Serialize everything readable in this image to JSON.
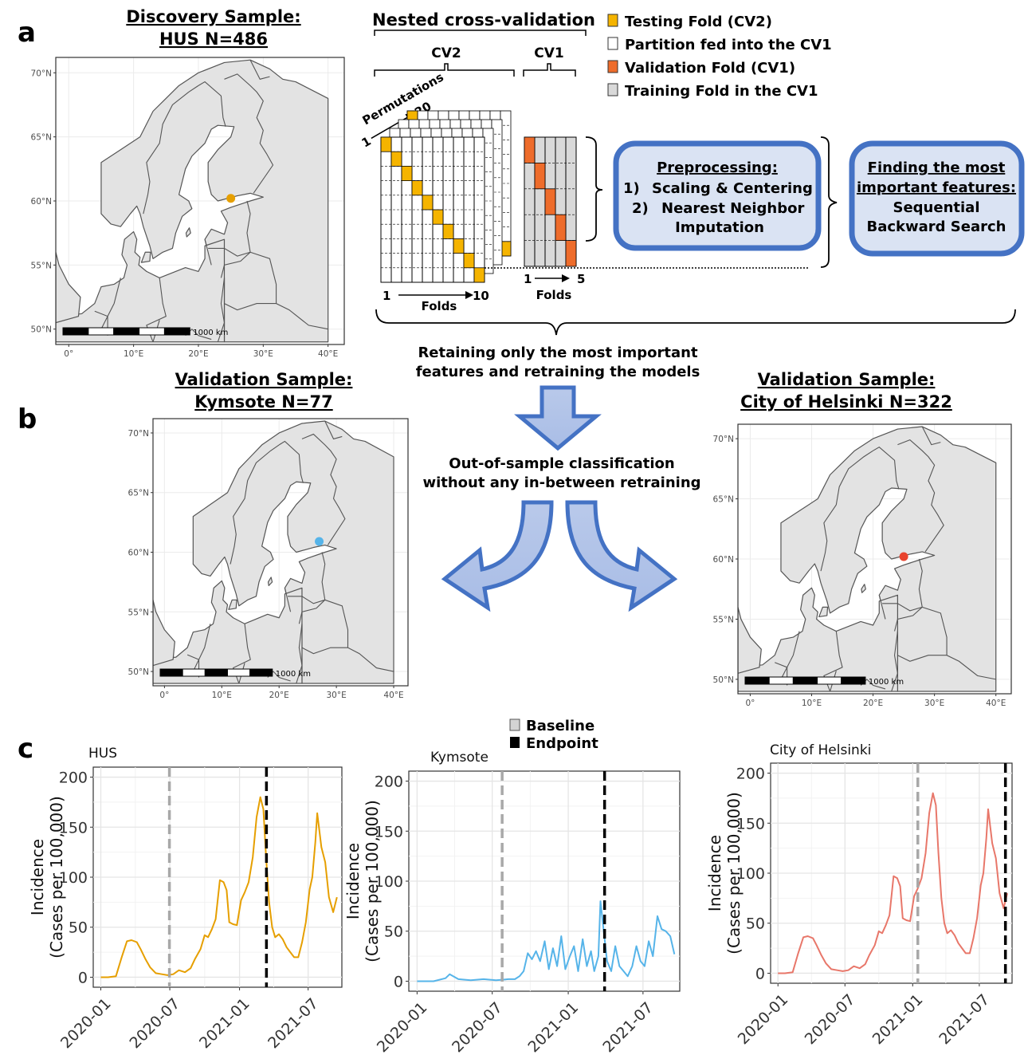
{
  "panel_a_label": "a",
  "panel_b_label": "b",
  "panel_c_label": "c",
  "maps": {
    "discovery": {
      "title1": "Discovery Sample:",
      "title2": "HUS N=486",
      "dot_color": "#E69F00"
    },
    "kymsote": {
      "title1": "Validation Sample:",
      "title2": "Kymsote N=77",
      "dot_color": "#56B4E9"
    },
    "helsinki": {
      "title1": "Validation Sample:",
      "title2": "City of Helsinki N=322",
      "dot_color": "#E8432D"
    },
    "lat_ticks": [
      "70°N",
      "65°N",
      "60°N",
      "55°N",
      "50°N"
    ],
    "lon_ticks": [
      "0°",
      "10°E",
      "20°E",
      "30°E",
      "40°E"
    ],
    "scale_label": "1000 km"
  },
  "ncv": {
    "title": "Nested cross-validation",
    "cv2": "CV2",
    "cv1": "CV1",
    "permutations": "Permutations",
    "perm_start": "1",
    "perm_end": "20",
    "folds": "Folds",
    "folds_start": "1",
    "folds_end": "10",
    "cv1_start": "1",
    "cv1_end": "5",
    "colors": {
      "testing": "#F5B400",
      "validation": "#EE6C2B",
      "training": "#D9D9D9"
    }
  },
  "legend": [
    {
      "label": "Testing Fold (CV2)",
      "color": "#F5B400"
    },
    {
      "label": "Partition fed into the CV1",
      "color": "#FFFFFF"
    },
    {
      "label": "Validation Fold (CV1)",
      "color": "#EE6C2B"
    },
    {
      "label": "Training Fold in the CV1",
      "color": "#D9D9D9"
    }
  ],
  "preprocessing": {
    "title": "Preprocessing:",
    "item1_num": "1)",
    "item1": "Scaling & Centering",
    "item2_num": "2)",
    "item2": "Nearest Neighbor",
    "item2b": "Imputation"
  },
  "features": {
    "title1": "Finding the most",
    "title2": "important features:",
    "line1": "Sequential",
    "line2": "Backward Search"
  },
  "retain": {
    "line1": "Retaining only the most important",
    "line2": "features  and retraining the models"
  },
  "oos": {
    "line1": "Out-of-sample classification",
    "line2": "without any in-between retraining"
  },
  "chart_legend": {
    "baseline": "Baseline",
    "endpoint": "Endpoint",
    "baseline_color": "#D3D3D3",
    "endpoint_color": "#000000"
  },
  "chart_data": [
    {
      "type": "line",
      "title": "HUS",
      "ylabel": "Incidence (Cases per 100,000)",
      "ylabel1": "Incidence",
      "ylabel2": "(Cases per 100,000)",
      "color": "#E69F00",
      "ylim": [
        0,
        200
      ],
      "yticks": [
        0,
        50,
        100,
        150,
        200
      ],
      "xticks": [
        "2020-01",
        "2020-07",
        "2021-01",
        "2021-07"
      ],
      "baseline": "2020-06-30",
      "endpoint": "2021-03-13",
      "x": [
        "2020-01-01",
        "2020-01-20",
        "2020-02-10",
        "2020-02-25",
        "2020-03-10",
        "2020-03-22",
        "2020-04-05",
        "2020-04-15",
        "2020-04-28",
        "2020-05-10",
        "2020-05-25",
        "2020-06-10",
        "2020-06-25",
        "2020-07-10",
        "2020-07-25",
        "2020-08-10",
        "2020-08-25",
        "2020-09-05",
        "2020-09-20",
        "2020-10-01",
        "2020-10-10",
        "2020-10-20",
        "2020-10-30",
        "2020-11-10",
        "2020-11-20",
        "2020-11-28",
        "2020-12-05",
        "2020-12-15",
        "2020-12-25",
        "2021-01-05",
        "2021-01-15",
        "2021-01-25",
        "2021-02-05",
        "2021-02-15",
        "2021-02-25",
        "2021-03-05",
        "2021-03-12",
        "2021-03-20",
        "2021-03-28",
        "2021-04-05",
        "2021-04-15",
        "2021-04-25",
        "2021-05-05",
        "2021-05-15",
        "2021-05-25",
        "2021-06-05",
        "2021-06-15",
        "2021-06-25",
        "2021-07-05",
        "2021-07-12",
        "2021-07-20",
        "2021-07-25",
        "2021-08-05",
        "2021-08-15",
        "2021-08-25",
        "2021-09-05",
        "2021-09-15"
      ],
      "y": [
        0,
        0,
        1,
        20,
        36,
        37,
        35,
        28,
        18,
        10,
        4,
        3,
        2,
        3,
        7,
        5,
        9,
        18,
        28,
        42,
        40,
        48,
        58,
        97,
        95,
        87,
        55,
        53,
        52,
        77,
        85,
        95,
        120,
        160,
        180,
        168,
        120,
        75,
        50,
        40,
        43,
        38,
        30,
        25,
        20,
        20,
        35,
        55,
        88,
        100,
        135,
        164,
        130,
        115,
        80,
        65,
        80
      ]
    },
    {
      "type": "line",
      "title": "Kymsote",
      "ylabel": "Incidence (Cases per 100,000)",
      "ylabel1": "Incidence",
      "ylabel2": "(Cases per 100,000)",
      "color": "#56B4E9",
      "ylim": [
        0,
        200
      ],
      "yticks": [
        0,
        50,
        100,
        150,
        200
      ],
      "xticks": [
        "2020-01",
        "2020-07",
        "2021-01",
        "2021-07"
      ],
      "baseline": "2020-07-25",
      "endpoint": "2021-03-30",
      "x": [
        "2020-01-01",
        "2020-02-10",
        "2020-03-10",
        "2020-03-20",
        "2020-04-10",
        "2020-05-10",
        "2020-06-10",
        "2020-07-10",
        "2020-08-10",
        "2020-08-25",
        "2020-09-05",
        "2020-09-15",
        "2020-09-25",
        "2020-10-05",
        "2020-10-15",
        "2020-10-25",
        "2020-11-05",
        "2020-11-15",
        "2020-11-25",
        "2020-12-05",
        "2020-12-15",
        "2020-12-25",
        "2021-01-05",
        "2021-01-15",
        "2021-01-25",
        "2021-02-05",
        "2021-02-15",
        "2021-02-25",
        "2021-03-05",
        "2021-03-15",
        "2021-03-20",
        "2021-03-28",
        "2021-04-05",
        "2021-04-15",
        "2021-04-25",
        "2021-05-05",
        "2021-05-15",
        "2021-05-25",
        "2021-06-05",
        "2021-06-15",
        "2021-06-25",
        "2021-07-05",
        "2021-07-15",
        "2021-07-25",
        "2021-08-05",
        "2021-08-15",
        "2021-08-25",
        "2021-09-05",
        "2021-09-15"
      ],
      "y": [
        0,
        0,
        3,
        7,
        2,
        1,
        2,
        1,
        2,
        2,
        5,
        10,
        28,
        22,
        30,
        20,
        40,
        12,
        33,
        15,
        45,
        12,
        25,
        35,
        10,
        42,
        15,
        30,
        10,
        25,
        80,
        50,
        20,
        10,
        35,
        15,
        10,
        5,
        15,
        35,
        20,
        15,
        40,
        25,
        65,
        52,
        50,
        45,
        27
      ]
    },
    {
      "type": "line",
      "title": "City of Helsinki",
      "ylabel": "Incidence (Cases per 100,000)",
      "ylabel1": "Incidence",
      "ylabel2": "(Cases per 100,000)",
      "color": "#E8776A",
      "ylim": [
        0,
        200
      ],
      "yticks": [
        0,
        50,
        100,
        150,
        200
      ],
      "xticks": [
        "2020-01",
        "2020-07",
        "2021-01",
        "2021-07"
      ],
      "baseline": "2021-01-15",
      "endpoint": "2021-09-10",
      "x": [
        "2020-01-01",
        "2020-01-20",
        "2020-02-10",
        "2020-02-25",
        "2020-03-10",
        "2020-03-22",
        "2020-04-05",
        "2020-04-15",
        "2020-04-28",
        "2020-05-10",
        "2020-05-25",
        "2020-06-10",
        "2020-06-25",
        "2020-07-10",
        "2020-07-25",
        "2020-08-10",
        "2020-08-25",
        "2020-09-05",
        "2020-09-20",
        "2020-10-01",
        "2020-10-10",
        "2020-10-20",
        "2020-10-30",
        "2020-11-10",
        "2020-11-20",
        "2020-11-28",
        "2020-12-05",
        "2020-12-15",
        "2020-12-25",
        "2021-01-05",
        "2021-01-15",
        "2021-01-25",
        "2021-02-05",
        "2021-02-15",
        "2021-02-25",
        "2021-03-05",
        "2021-03-12",
        "2021-03-20",
        "2021-03-28",
        "2021-04-05",
        "2021-04-15",
        "2021-04-25",
        "2021-05-05",
        "2021-05-15",
        "2021-05-25",
        "2021-06-05",
        "2021-06-15",
        "2021-06-25",
        "2021-07-05",
        "2021-07-12",
        "2021-07-20",
        "2021-07-25",
        "2021-08-05",
        "2021-08-15",
        "2021-08-25",
        "2021-09-05",
        "2021-09-15"
      ],
      "y": [
        0,
        0,
        1,
        20,
        36,
        37,
        35,
        28,
        18,
        10,
        4,
        3,
        2,
        3,
        7,
        5,
        9,
        18,
        28,
        42,
        40,
        48,
        58,
        97,
        95,
        87,
        55,
        53,
        52,
        77,
        85,
        95,
        120,
        160,
        180,
        168,
        120,
        75,
        50,
        40,
        43,
        38,
        30,
        25,
        20,
        20,
        35,
        55,
        88,
        100,
        135,
        164,
        130,
        115,
        80,
        65,
        80
      ]
    }
  ]
}
